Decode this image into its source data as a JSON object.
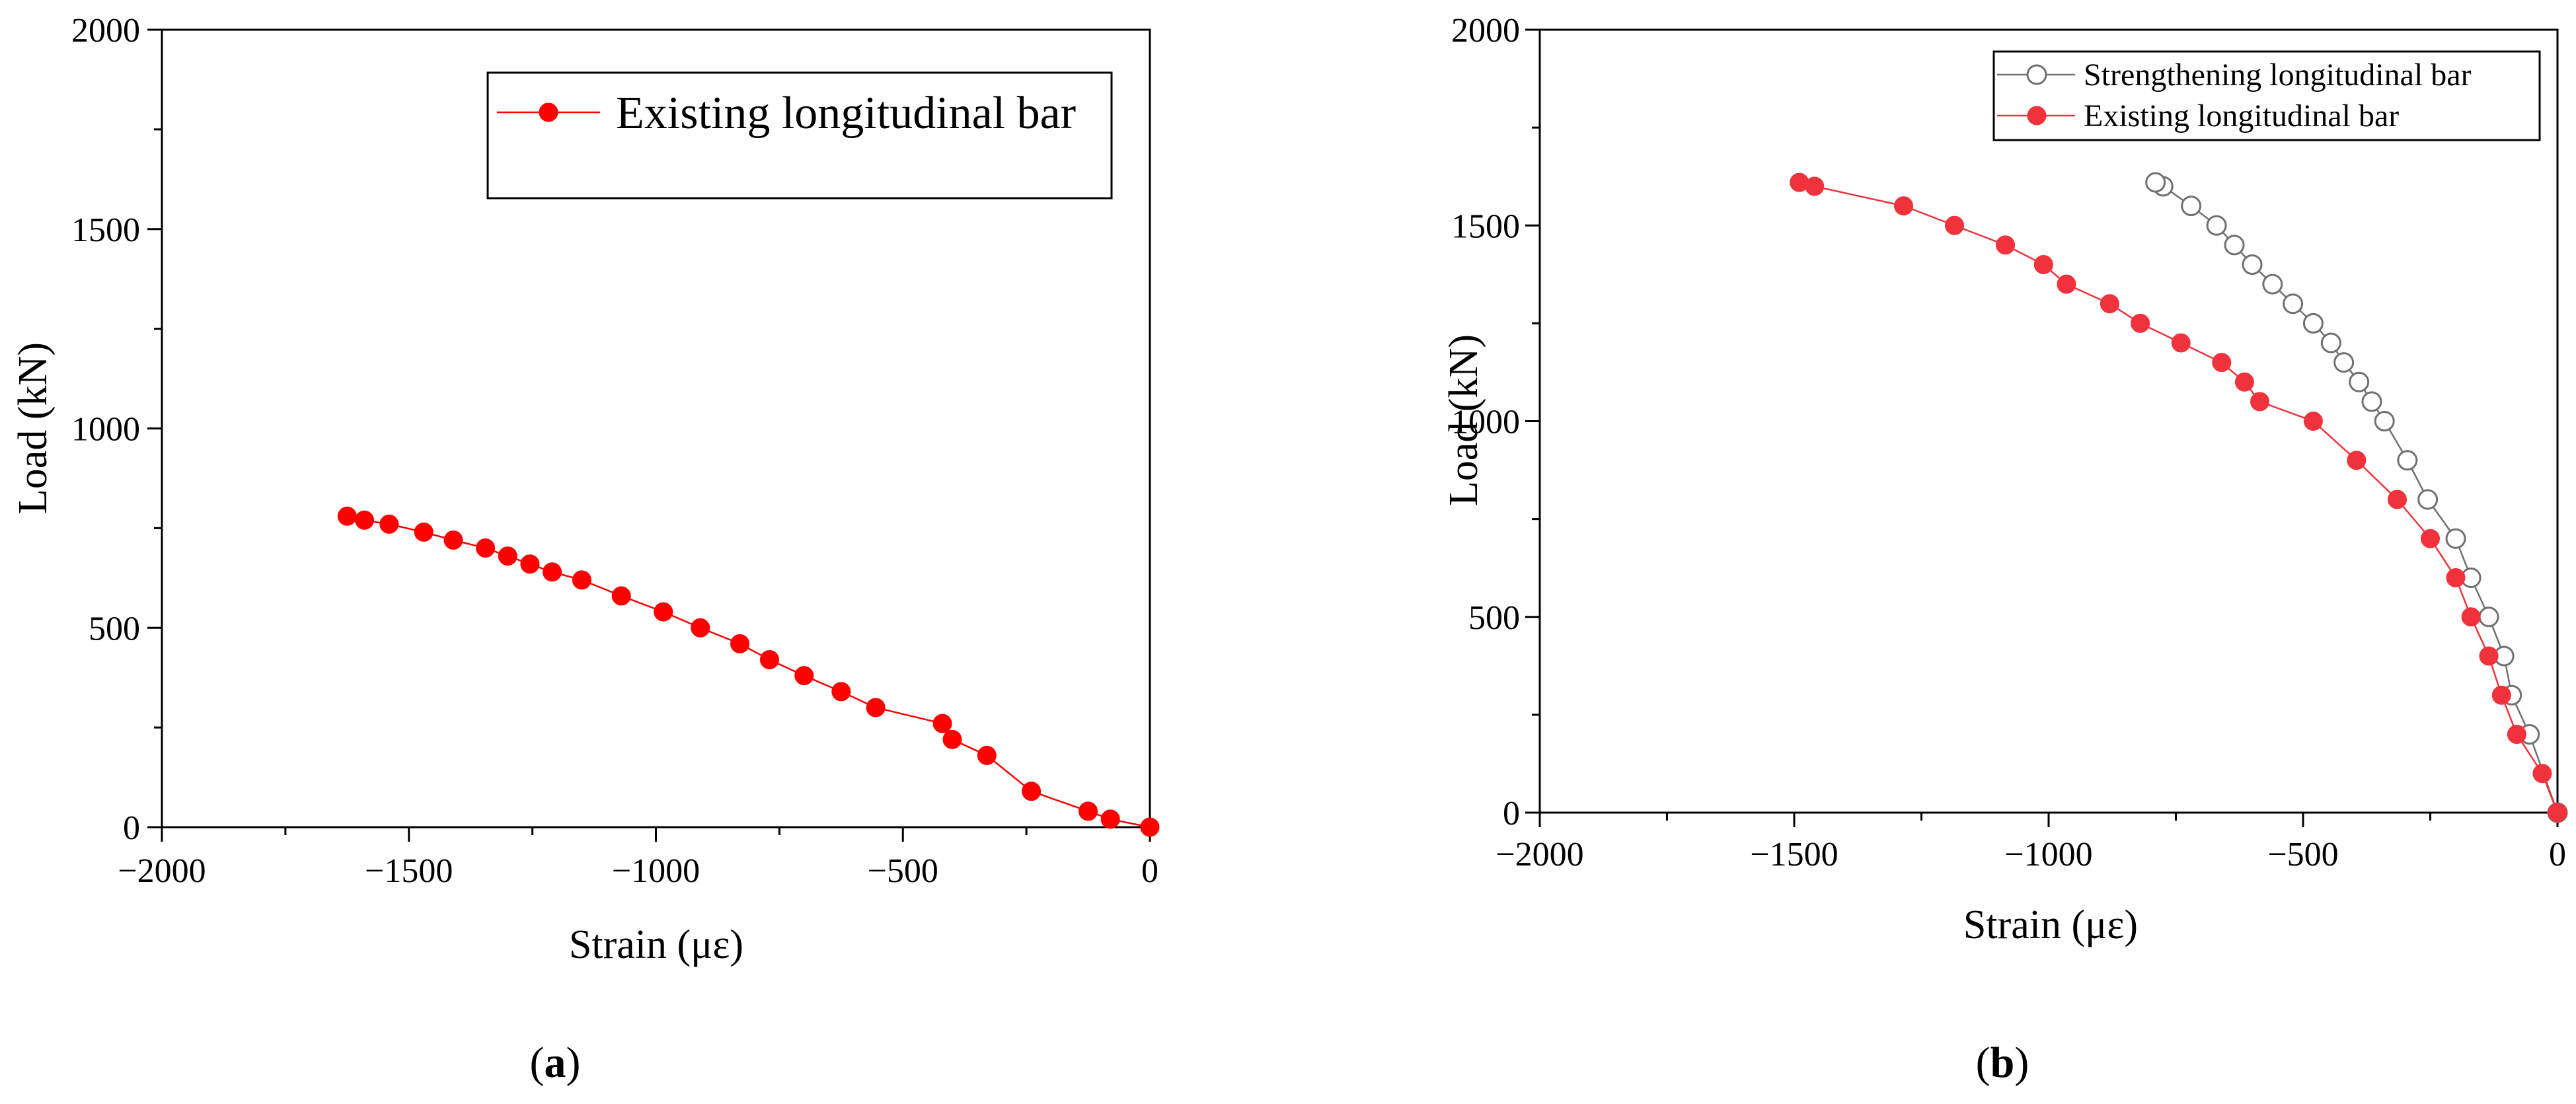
{
  "chart_data": [
    {
      "type": "line",
      "panel_label": "(a)",
      "panel_letter": "a",
      "xlabel": "Strain (με)",
      "ylabel": "Load (kN)",
      "xlim": [
        -2000,
        0
      ],
      "ylim": [
        0,
        2000
      ],
      "xticks": [
        -2000,
        -1500,
        -1000,
        -500,
        0
      ],
      "yticks": [
        0,
        500,
        1000,
        1500,
        2000
      ],
      "xtick_labels": [
        "−2000",
        "−1500",
        "−1000",
        "−500",
        "0"
      ],
      "ytick_labels": [
        "0",
        "500",
        "1000",
        "1500",
        "2000"
      ],
      "legend_position": "top-right",
      "grid": false,
      "series": [
        {
          "name": "Existing longitudinal bar",
          "marker": "filled-circle",
          "color": "#ff0000",
          "x": [
            0,
            -80,
            -125,
            -240,
            -330,
            -400,
            -420,
            -555,
            -625,
            -700,
            -770,
            -830,
            -910,
            -985,
            -1070,
            -1150,
            -1210,
            -1255,
            -1300,
            -1345,
            -1410,
            -1470,
            -1540,
            -1590,
            -1625
          ],
          "y": [
            0,
            20,
            40,
            90,
            180,
            220,
            260,
            300,
            340,
            380,
            420,
            460,
            500,
            540,
            580,
            620,
            640,
            660,
            680,
            700,
            720,
            740,
            760,
            770,
            780
          ]
        }
      ]
    },
    {
      "type": "line",
      "panel_label": "(b)",
      "panel_letter": "b",
      "xlabel": "Strain (με)",
      "ylabel": "Load (kN)",
      "xlim": [
        -2000,
        0
      ],
      "ylim": [
        0,
        2000
      ],
      "xticks": [
        -2000,
        -1500,
        -1000,
        -500,
        0
      ],
      "yticks": [
        0,
        500,
        1000,
        1500,
        2000
      ],
      "xtick_labels": [
        "−2000",
        "−1500",
        "−1000",
        "−500",
        "0"
      ],
      "ytick_labels": [
        "0",
        "500",
        "1000",
        "1500",
        "2000"
      ],
      "legend_position": "top-right",
      "grid": false,
      "series": [
        {
          "name": "Strengthening longitudinal bar",
          "marker": "open-circle",
          "color": "#707070",
          "x": [
            0,
            -55,
            -90,
            -105,
            -135,
            -170,
            -200,
            -255,
            -295,
            -340,
            -365,
            -390,
            -420,
            -445,
            -480,
            -520,
            -560,
            -600,
            -635,
            -670,
            -720,
            -775,
            -790
          ],
          "y": [
            0,
            200,
            300,
            400,
            500,
            600,
            700,
            800,
            900,
            1000,
            1050,
            1100,
            1150,
            1200,
            1250,
            1300,
            1350,
            1400,
            1450,
            1500,
            1550,
            1600,
            1610
          ]
        },
        {
          "name": "Existing longitudinal bar",
          "marker": "filled-circle",
          "color": "#f0323c",
          "x": [
            0,
            -30,
            -80,
            -110,
            -135,
            -170,
            -200,
            -250,
            -315,
            -395,
            -480,
            -585,
            -615,
            -660,
            -740,
            -820,
            -880,
            -965,
            -1010,
            -1085,
            -1185,
            -1285,
            -1460,
            -1490
          ],
          "y": [
            0,
            100,
            200,
            300,
            400,
            500,
            600,
            700,
            800,
            900,
            1000,
            1050,
            1100,
            1150,
            1200,
            1250,
            1300,
            1350,
            1400,
            1450,
            1500,
            1550,
            1600,
            1610
          ]
        }
      ]
    }
  ]
}
